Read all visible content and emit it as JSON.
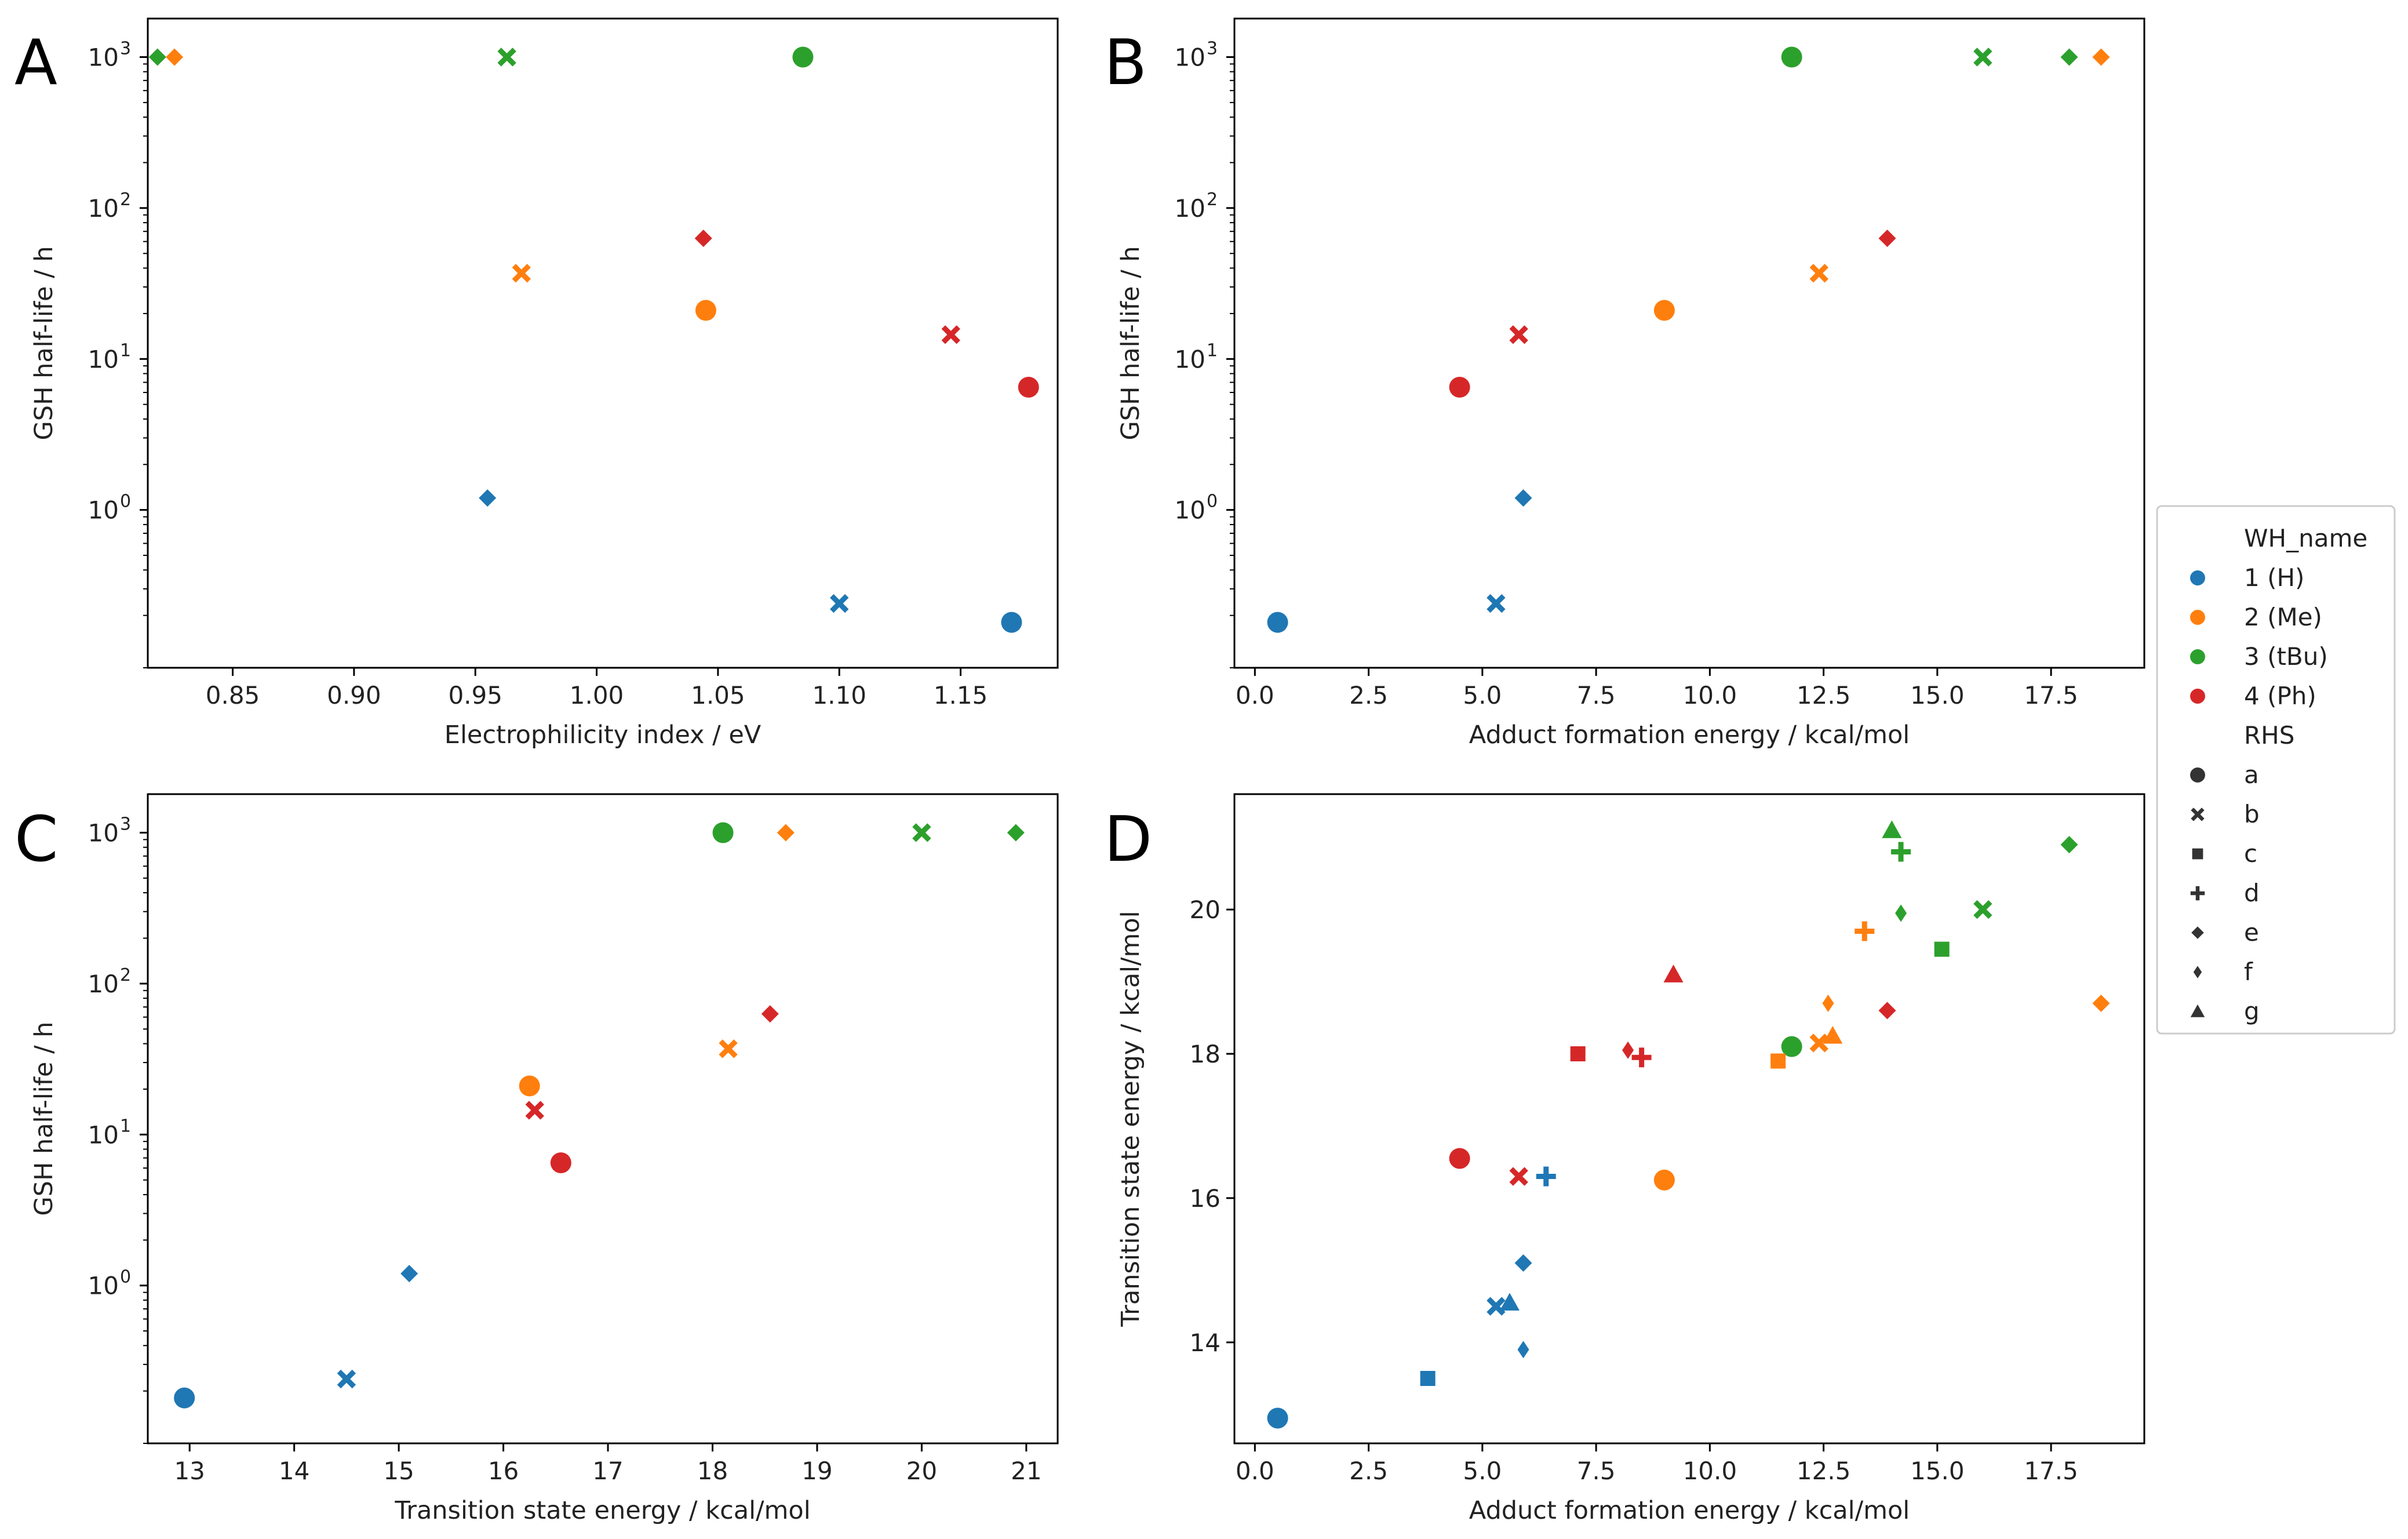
{
  "colors": {
    "1 (H)": "#1f77b4",
    "2 (Me)": "#ff7f0e",
    "3 (tBu)": "#2ca02c",
    "4 (Ph)": "#d62728"
  },
  "legend": {
    "hue_title": "WH_name",
    "hue_items": [
      "1 (H)",
      "2 (Me)",
      "3 (tBu)",
      "4 (Ph)"
    ],
    "style_title": "RHS",
    "style_items": [
      {
        "label": "a",
        "marker": "circle"
      },
      {
        "label": "b",
        "marker": "x"
      },
      {
        "label": "c",
        "marker": "square"
      },
      {
        "label": "d",
        "marker": "plus"
      },
      {
        "label": "e",
        "marker": "diamond"
      },
      {
        "label": "f",
        "marker": "thin-diamond"
      },
      {
        "label": "g",
        "marker": "triangle"
      }
    ]
  },
  "chart_data": [
    {
      "panel": "A",
      "type": "scatter",
      "xlabel": "Electrophilicity index / eV",
      "ylabel": "GSH half-life / h",
      "xlim": [
        0.815,
        1.19
      ],
      "yscale": "log",
      "ylim": [
        0.09,
        1800
      ],
      "xticks": [
        0.85,
        0.9,
        0.95,
        1.0,
        1.05,
        1.1,
        1.15
      ],
      "xtick_labels": [
        "0.85",
        "0.90",
        "0.95",
        "1.00",
        "1.05",
        "1.10",
        "1.15"
      ],
      "yticks": [
        1,
        10,
        100,
        1000
      ],
      "ytick_labels": [
        [
          "10",
          "0"
        ],
        [
          "10",
          "1"
        ],
        [
          "10",
          "2"
        ],
        [
          "10",
          "3"
        ]
      ],
      "points": [
        {
          "x": 0.819,
          "y": 1000,
          "group": "3 (tBu)",
          "marker": "diamond"
        },
        {
          "x": 0.826,
          "y": 1000,
          "group": "2 (Me)",
          "marker": "diamond"
        },
        {
          "x": 0.963,
          "y": 1000,
          "group": "3 (tBu)",
          "marker": "x"
        },
        {
          "x": 1.085,
          "y": 1000,
          "group": "3 (tBu)",
          "marker": "circle"
        },
        {
          "x": 1.044,
          "y": 63,
          "group": "4 (Ph)",
          "marker": "diamond"
        },
        {
          "x": 0.969,
          "y": 37,
          "group": "2 (Me)",
          "marker": "x"
        },
        {
          "x": 1.045,
          "y": 21,
          "group": "2 (Me)",
          "marker": "circle"
        },
        {
          "x": 1.146,
          "y": 14.5,
          "group": "4 (Ph)",
          "marker": "x"
        },
        {
          "x": 1.178,
          "y": 6.5,
          "group": "4 (Ph)",
          "marker": "circle"
        },
        {
          "x": 0.955,
          "y": 1.2,
          "group": "1 (H)",
          "marker": "diamond"
        },
        {
          "x": 1.1,
          "y": 0.24,
          "group": "1 (H)",
          "marker": "x"
        },
        {
          "x": 1.171,
          "y": 0.18,
          "group": "1 (H)",
          "marker": "circle"
        }
      ]
    },
    {
      "panel": "B",
      "type": "scatter",
      "xlabel": "Adduct formation energy / kcal/mol",
      "ylabel": "GSH half-life / h",
      "xlim": [
        -0.45,
        19.55
      ],
      "yscale": "log",
      "ylim": [
        0.09,
        1800
      ],
      "xticks": [
        0.0,
        2.5,
        5.0,
        7.5,
        10.0,
        12.5,
        15.0,
        17.5
      ],
      "xtick_labels": [
        "0.0",
        "2.5",
        "5.0",
        "7.5",
        "10.0",
        "12.5",
        "15.0",
        "17.5"
      ],
      "yticks": [
        1,
        10,
        100,
        1000
      ],
      "ytick_labels": [
        [
          "10",
          "0"
        ],
        [
          "10",
          "1"
        ],
        [
          "10",
          "2"
        ],
        [
          "10",
          "3"
        ]
      ],
      "points": [
        {
          "x": 11.8,
          "y": 1000,
          "group": "3 (tBu)",
          "marker": "circle"
        },
        {
          "x": 16.0,
          "y": 1000,
          "group": "3 (tBu)",
          "marker": "x"
        },
        {
          "x": 17.9,
          "y": 1000,
          "group": "3 (tBu)",
          "marker": "diamond"
        },
        {
          "x": 18.6,
          "y": 1000,
          "group": "2 (Me)",
          "marker": "diamond"
        },
        {
          "x": 13.9,
          "y": 63,
          "group": "4 (Ph)",
          "marker": "diamond"
        },
        {
          "x": 12.4,
          "y": 37,
          "group": "2 (Me)",
          "marker": "x"
        },
        {
          "x": 9.0,
          "y": 21,
          "group": "2 (Me)",
          "marker": "circle"
        },
        {
          "x": 5.8,
          "y": 14.5,
          "group": "4 (Ph)",
          "marker": "x"
        },
        {
          "x": 4.5,
          "y": 6.5,
          "group": "4 (Ph)",
          "marker": "circle"
        },
        {
          "x": 5.9,
          "y": 1.2,
          "group": "1 (H)",
          "marker": "diamond"
        },
        {
          "x": 5.3,
          "y": 0.24,
          "group": "1 (H)",
          "marker": "x"
        },
        {
          "x": 0.5,
          "y": 0.18,
          "group": "1 (H)",
          "marker": "circle"
        }
      ]
    },
    {
      "panel": "C",
      "type": "scatter",
      "xlabel": "Transition state energy / kcal/mol",
      "ylabel": "GSH half-life / h",
      "xlim": [
        12.6,
        21.3
      ],
      "yscale": "log",
      "ylim": [
        0.09,
        1800
      ],
      "xticks": [
        13,
        14,
        15,
        16,
        17,
        18,
        19,
        20,
        21
      ],
      "xtick_labels": [
        "13",
        "14",
        "15",
        "16",
        "17",
        "18",
        "19",
        "20",
        "21"
      ],
      "yticks": [
        1,
        10,
        100,
        1000
      ],
      "ytick_labels": [
        [
          "10",
          "0"
        ],
        [
          "10",
          "1"
        ],
        [
          "10",
          "2"
        ],
        [
          "10",
          "3"
        ]
      ],
      "points": [
        {
          "x": 18.1,
          "y": 1000,
          "group": "3 (tBu)",
          "marker": "circle"
        },
        {
          "x": 18.7,
          "y": 1000,
          "group": "2 (Me)",
          "marker": "diamond"
        },
        {
          "x": 20.0,
          "y": 1000,
          "group": "3 (tBu)",
          "marker": "x"
        },
        {
          "x": 20.9,
          "y": 1000,
          "group": "3 (tBu)",
          "marker": "diamond"
        },
        {
          "x": 18.55,
          "y": 63,
          "group": "4 (Ph)",
          "marker": "diamond"
        },
        {
          "x": 18.15,
          "y": 37,
          "group": "2 (Me)",
          "marker": "x"
        },
        {
          "x": 16.25,
          "y": 21,
          "group": "2 (Me)",
          "marker": "circle"
        },
        {
          "x": 16.3,
          "y": 14.5,
          "group": "4 (Ph)",
          "marker": "x"
        },
        {
          "x": 16.55,
          "y": 6.5,
          "group": "4 (Ph)",
          "marker": "circle"
        },
        {
          "x": 15.1,
          "y": 1.2,
          "group": "1 (H)",
          "marker": "diamond"
        },
        {
          "x": 14.5,
          "y": 0.24,
          "group": "1 (H)",
          "marker": "x"
        },
        {
          "x": 12.95,
          "y": 0.18,
          "group": "1 (H)",
          "marker": "circle"
        }
      ]
    },
    {
      "panel": "D",
      "type": "scatter",
      "xlabel": "Adduct formation energy / kcal/mol",
      "ylabel": "Transition state energy / kcal/mol",
      "xlim": [
        -0.45,
        19.55
      ],
      "yscale": "linear",
      "ylim": [
        12.6,
        21.6
      ],
      "xticks": [
        0.0,
        2.5,
        5.0,
        7.5,
        10.0,
        12.5,
        15.0,
        17.5
      ],
      "xtick_labels": [
        "0.0",
        "2.5",
        "5.0",
        "7.5",
        "10.0",
        "12.5",
        "15.0",
        "17.5"
      ],
      "yticks": [
        14,
        16,
        18,
        20
      ],
      "ytick_labels": [
        [
          "14"
        ],
        [
          "16"
        ],
        [
          "18"
        ],
        [
          "20"
        ]
      ],
      "points": [
        {
          "x": 14.0,
          "y": 21.1,
          "group": "3 (tBu)",
          "marker": "triangle"
        },
        {
          "x": 17.9,
          "y": 20.9,
          "group": "3 (tBu)",
          "marker": "diamond"
        },
        {
          "x": 14.2,
          "y": 20.8,
          "group": "3 (tBu)",
          "marker": "plus"
        },
        {
          "x": 16.0,
          "y": 20.0,
          "group": "3 (tBu)",
          "marker": "x"
        },
        {
          "x": 14.2,
          "y": 19.95,
          "group": "3 (tBu)",
          "marker": "thin-diamond"
        },
        {
          "x": 13.4,
          "y": 19.7,
          "group": "2 (Me)",
          "marker": "plus"
        },
        {
          "x": 15.1,
          "y": 19.45,
          "group": "3 (tBu)",
          "marker": "square"
        },
        {
          "x": 9.2,
          "y": 19.1,
          "group": "4 (Ph)",
          "marker": "triangle"
        },
        {
          "x": 12.6,
          "y": 18.7,
          "group": "2 (Me)",
          "marker": "thin-diamond"
        },
        {
          "x": 18.6,
          "y": 18.7,
          "group": "2 (Me)",
          "marker": "diamond"
        },
        {
          "x": 13.9,
          "y": 18.6,
          "group": "4 (Ph)",
          "marker": "diamond"
        },
        {
          "x": 12.7,
          "y": 18.25,
          "group": "2 (Me)",
          "marker": "triangle"
        },
        {
          "x": 12.4,
          "y": 18.15,
          "group": "2 (Me)",
          "marker": "x"
        },
        {
          "x": 11.8,
          "y": 18.1,
          "group": "3 (tBu)",
          "marker": "circle"
        },
        {
          "x": 8.2,
          "y": 18.05,
          "group": "4 (Ph)",
          "marker": "thin-diamond"
        },
        {
          "x": 7.1,
          "y": 18.0,
          "group": "4 (Ph)",
          "marker": "square"
        },
        {
          "x": 8.5,
          "y": 17.95,
          "group": "4 (Ph)",
          "marker": "plus"
        },
        {
          "x": 11.5,
          "y": 17.9,
          "group": "2 (Me)",
          "marker": "square"
        },
        {
          "x": 4.5,
          "y": 16.55,
          "group": "4 (Ph)",
          "marker": "circle"
        },
        {
          "x": 6.4,
          "y": 16.3,
          "group": "1 (H)",
          "marker": "plus"
        },
        {
          "x": 5.8,
          "y": 16.3,
          "group": "4 (Ph)",
          "marker": "x"
        },
        {
          "x": 9.0,
          "y": 16.25,
          "group": "2 (Me)",
          "marker": "circle"
        },
        {
          "x": 5.9,
          "y": 15.1,
          "group": "1 (H)",
          "marker": "diamond"
        },
        {
          "x": 5.6,
          "y": 14.55,
          "group": "1 (H)",
          "marker": "triangle"
        },
        {
          "x": 5.3,
          "y": 14.5,
          "group": "1 (H)",
          "marker": "x"
        },
        {
          "x": 5.9,
          "y": 13.9,
          "group": "1 (H)",
          "marker": "thin-diamond"
        },
        {
          "x": 3.8,
          "y": 13.5,
          "group": "1 (H)",
          "marker": "square"
        },
        {
          "x": 0.5,
          "y": 12.95,
          "group": "1 (H)",
          "marker": "circle"
        }
      ]
    }
  ]
}
